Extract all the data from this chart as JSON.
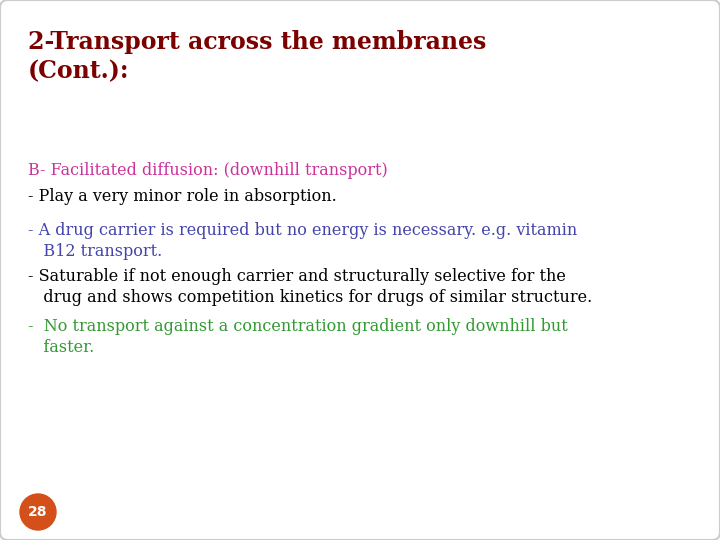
{
  "bg_color": "#ffffff",
  "border_color": "#cccccc",
  "title_line1": "2-Transport across the membranes",
  "title_line2": "(Cont.):",
  "title_color": "#7B0000",
  "title_fontsize": 17,
  "subtitle": "B- Facilitated diffusion: (downhill transport)",
  "subtitle_color": "#CC3399",
  "subtitle_fontsize": 11.5,
  "bullet_fontsize": 11.5,
  "bullets": [
    {
      "dash": "- ",
      "text": "Play a very minor role in absorption.",
      "color": "#000000"
    },
    {
      "dash": "- ",
      "text": "A drug carrier is required but no energy is necessary. e.g. vitamin\n   B12 transport.",
      "color": "#4444AA"
    },
    {
      "dash": "- ",
      "text": "Saturable if not enough carrier and structurally selective for the\n   drug and shows competition kinetics for drugs of similar structure.",
      "color": "#000000"
    },
    {
      "dash": "-  ",
      "text": "No transport against a concentration gradient only downhill but\n   faster.",
      "color": "#339933"
    }
  ],
  "page_number": "28",
  "page_circle_color": "#D4501A",
  "page_text_color": "#ffffff",
  "page_fontsize": 10
}
